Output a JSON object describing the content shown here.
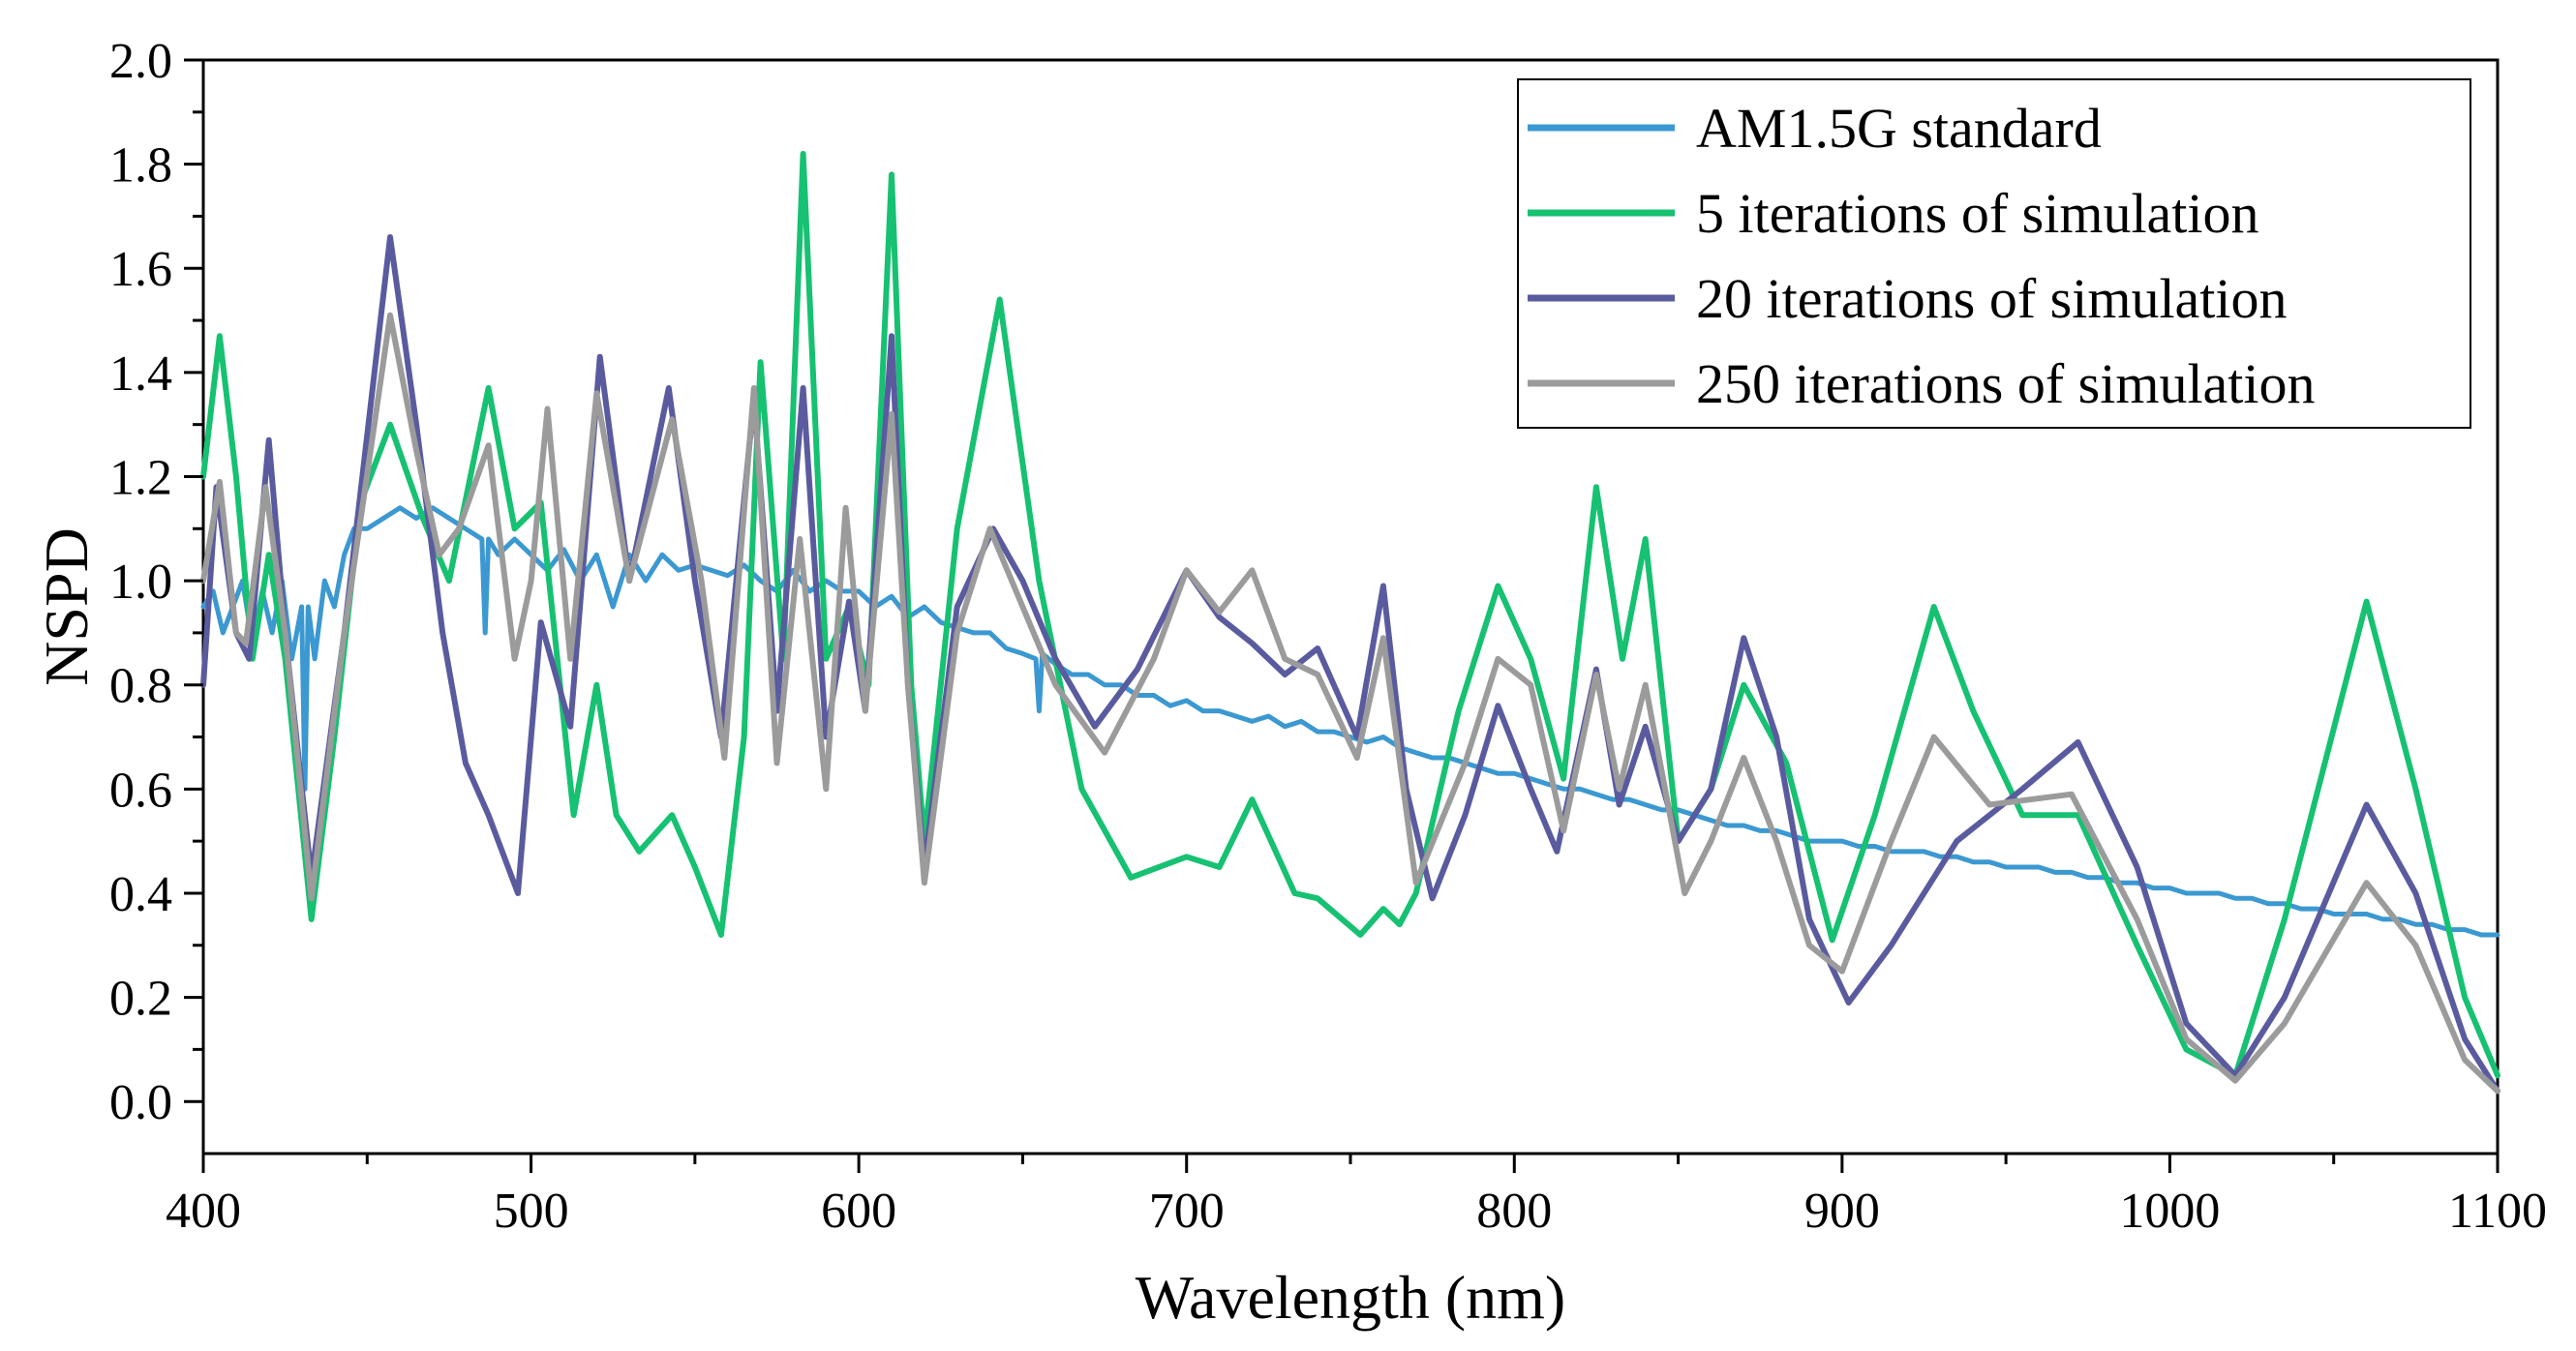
{
  "chart_data": {
    "type": "line",
    "title": "",
    "xlabel": "Wavelength (nm)",
    "ylabel": "NSPD",
    "xlim": [
      400,
      1100
    ],
    "ylim": [
      -0.1,
      2.0
    ],
    "xticks": [
      "400",
      "500",
      "600",
      "700",
      "800",
      "900",
      "1000",
      "1100"
    ],
    "yticks": [
      "0.0",
      "0.2",
      "0.4",
      "0.6",
      "0.8",
      "1.0",
      "1.2",
      "1.4",
      "1.6",
      "1.8",
      "2.0"
    ],
    "grid": false,
    "legend_position": "top-right",
    "series": [
      {
        "name": "AM1.5G standard",
        "color": "#3b98d1",
        "x": [
          400,
          403,
          406,
          409,
          412,
          415,
          418,
          421,
          424,
          427,
          430,
          431,
          432,
          434,
          437,
          440,
          443,
          446,
          450,
          455,
          460,
          465,
          470,
          475,
          480,
          485,
          486,
          487,
          490,
          495,
          500,
          505,
          510,
          515,
          520,
          525,
          530,
          535,
          540,
          545,
          550,
          555,
          560,
          565,
          570,
          575,
          580,
          585,
          590,
          595,
          600,
          605,
          610,
          615,
          620,
          625,
          630,
          635,
          640,
          645,
          650,
          654,
          655,
          656,
          660,
          665,
          670,
          675,
          680,
          685,
          690,
          695,
          700,
          705,
          710,
          715,
          720,
          725,
          730,
          735,
          740,
          745,
          750,
          755,
          760,
          765,
          770,
          775,
          780,
          785,
          790,
          795,
          800,
          805,
          810,
          815,
          820,
          825,
          830,
          835,
          840,
          845,
          850,
          855,
          860,
          865,
          870,
          875,
          880,
          885,
          890,
          895,
          900,
          905,
          910,
          915,
          920,
          925,
          930,
          935,
          940,
          945,
          950,
          955,
          960,
          965,
          970,
          975,
          980,
          985,
          990,
          995,
          1000,
          1005,
          1010,
          1015,
          1020,
          1025,
          1030,
          1035,
          1040,
          1045,
          1050,
          1055,
          1060,
          1065,
          1070,
          1075,
          1080,
          1085,
          1090,
          1095,
          1100
        ],
        "values": [
          0.95,
          0.98,
          0.9,
          0.95,
          1.0,
          0.88,
          0.98,
          0.9,
          1.0,
          0.85,
          0.95,
          0.6,
          0.95,
          0.85,
          1.0,
          0.95,
          1.05,
          1.1,
          1.1,
          1.12,
          1.14,
          1.12,
          1.14,
          1.12,
          1.1,
          1.08,
          0.9,
          1.08,
          1.05,
          1.08,
          1.05,
          1.02,
          1.06,
          1.0,
          1.05,
          0.95,
          1.05,
          1.0,
          1.05,
          1.02,
          1.03,
          1.02,
          1.01,
          1.03,
          1.0,
          0.98,
          1.02,
          0.98,
          1.0,
          0.98,
          0.98,
          0.95,
          0.97,
          0.93,
          0.95,
          0.92,
          0.91,
          0.9,
          0.9,
          0.87,
          0.86,
          0.85,
          0.75,
          0.86,
          0.84,
          0.82,
          0.82,
          0.8,
          0.8,
          0.78,
          0.78,
          0.76,
          0.77,
          0.75,
          0.75,
          0.74,
          0.73,
          0.74,
          0.72,
          0.73,
          0.71,
          0.71,
          0.7,
          0.69,
          0.7,
          0.68,
          0.67,
          0.66,
          0.66,
          0.65,
          0.64,
          0.63,
          0.63,
          0.62,
          0.61,
          0.6,
          0.6,
          0.59,
          0.58,
          0.58,
          0.57,
          0.56,
          0.56,
          0.55,
          0.54,
          0.53,
          0.53,
          0.52,
          0.52,
          0.51,
          0.5,
          0.5,
          0.5,
          0.49,
          0.49,
          0.48,
          0.48,
          0.48,
          0.47,
          0.47,
          0.46,
          0.46,
          0.45,
          0.45,
          0.45,
          0.44,
          0.44,
          0.43,
          0.43,
          0.42,
          0.42,
          0.41,
          0.41,
          0.4,
          0.4,
          0.4,
          0.39,
          0.39,
          0.38,
          0.38,
          0.37,
          0.37,
          0.36,
          0.36,
          0.36,
          0.35,
          0.35,
          0.34,
          0.34,
          0.33,
          0.33,
          0.32,
          0.32
        ]
      },
      {
        "name": "5 iterations of simulation",
        "color": "#16c172",
        "x": [
          400,
          405,
          410,
          415,
          420,
          425,
          433,
          440,
          448,
          457,
          467,
          475,
          487,
          495,
          503,
          508,
          513,
          520,
          526,
          533,
          543,
          550,
          558,
          565,
          570,
          577,
          583,
          590,
          597,
          603,
          610,
          616,
          620,
          630,
          643,
          655,
          668,
          683,
          700,
          710,
          720,
          733,
          740,
          753,
          760,
          765,
          770,
          783,
          795,
          805,
          815,
          825,
          833,
          840,
          850,
          860,
          870,
          883,
          897,
          910,
          928,
          940,
          955,
          972,
          990,
          1005,
          1020,
          1035,
          1060,
          1075,
          1090,
          1100
        ],
        "values": [
          1.2,
          1.47,
          1.2,
          0.85,
          1.05,
          0.85,
          0.35,
          0.7,
          1.15,
          1.3,
          1.12,
          1.0,
          1.37,
          1.1,
          1.15,
          0.85,
          0.55,
          0.8,
          0.55,
          0.48,
          0.55,
          0.45,
          0.32,
          0.7,
          1.42,
          0.85,
          1.82,
          0.85,
          0.95,
          0.8,
          1.78,
          0.8,
          0.5,
          1.1,
          1.54,
          1.0,
          0.6,
          0.43,
          0.47,
          0.45,
          0.58,
          0.4,
          0.39,
          0.32,
          0.37,
          0.34,
          0.4,
          0.75,
          0.99,
          0.85,
          0.62,
          1.18,
          0.85,
          1.08,
          0.5,
          0.6,
          0.8,
          0.65,
          0.31,
          0.55,
          0.95,
          0.75,
          0.55,
          0.55,
          0.3,
          0.1,
          0.05,
          0.35,
          0.96,
          0.6,
          0.2,
          0.05
        ]
      },
      {
        "name": "20 iterations of simulation",
        "color": "#5a5b9f",
        "x": [
          400,
          404,
          410,
          414,
          420,
          425,
          433,
          443,
          457,
          465,
          473,
          480,
          487,
          496,
          503,
          512,
          521,
          530,
          542,
          550,
          558,
          568,
          575,
          583,
          590,
          597,
          602,
          610,
          615,
          620,
          630,
          641,
          650,
          660,
          672,
          685,
          700,
          710,
          720,
          730,
          740,
          752,
          760,
          767,
          775,
          785,
          795,
          805,
          813,
          825,
          832,
          840,
          850,
          860,
          870,
          880,
          890,
          902,
          915,
          935,
          955,
          972,
          990,
          1005,
          1020,
          1035,
          1060,
          1075,
          1090,
          1100
        ],
        "values": [
          0.8,
          1.18,
          0.9,
          0.85,
          1.27,
          0.9,
          0.43,
          0.9,
          1.66,
          1.3,
          0.9,
          0.65,
          0.55,
          0.4,
          0.92,
          0.72,
          1.43,
          1.0,
          1.37,
          1.0,
          0.7,
          1.35,
          0.75,
          1.37,
          0.7,
          0.96,
          0.75,
          1.47,
          0.8,
          0.45,
          0.95,
          1.1,
          1.0,
          0.85,
          0.72,
          0.83,
          1.02,
          0.93,
          0.88,
          0.82,
          0.87,
          0.7,
          0.99,
          0.6,
          0.39,
          0.55,
          0.76,
          0.6,
          0.48,
          0.83,
          0.57,
          0.72,
          0.5,
          0.6,
          0.89,
          0.7,
          0.35,
          0.19,
          0.3,
          0.5,
          0.6,
          0.69,
          0.45,
          0.15,
          0.05,
          0.2,
          0.57,
          0.4,
          0.12,
          0.02
        ]
      },
      {
        "name": "250 iterations of simulation",
        "color": "#9b9b9b",
        "x": [
          400,
          405,
          410,
          413,
          419,
          425,
          433,
          443,
          457,
          465,
          472,
          478,
          487,
          495,
          500,
          505,
          512,
          520,
          530,
          543,
          552,
          559,
          568,
          575,
          582,
          590,
          596,
          602,
          610,
          615,
          620,
          630,
          640,
          650,
          660,
          675,
          690,
          700,
          710,
          720,
          730,
          740,
          752,
          760,
          770,
          785,
          795,
          805,
          815,
          825,
          832,
          840,
          852,
          860,
          870,
          880,
          890,
          900,
          915,
          928,
          945,
          970,
          990,
          1005,
          1020,
          1035,
          1060,
          1075,
          1090,
          1100
        ],
        "values": [
          1.0,
          1.19,
          0.9,
          0.88,
          1.18,
          0.9,
          0.39,
          0.9,
          1.51,
          1.25,
          1.05,
          1.1,
          1.26,
          0.85,
          1.0,
          1.33,
          0.85,
          1.36,
          1.0,
          1.31,
          1.0,
          0.66,
          1.37,
          0.65,
          1.08,
          0.6,
          1.14,
          0.75,
          1.32,
          0.8,
          0.42,
          0.9,
          1.1,
          0.95,
          0.8,
          0.67,
          0.85,
          1.02,
          0.94,
          1.02,
          0.85,
          0.82,
          0.66,
          0.89,
          0.42,
          0.65,
          0.85,
          0.8,
          0.52,
          0.82,
          0.6,
          0.8,
          0.4,
          0.5,
          0.66,
          0.5,
          0.3,
          0.25,
          0.5,
          0.7,
          0.57,
          0.59,
          0.35,
          0.12,
          0.04,
          0.15,
          0.42,
          0.3,
          0.08,
          0.02
        ]
      }
    ]
  }
}
